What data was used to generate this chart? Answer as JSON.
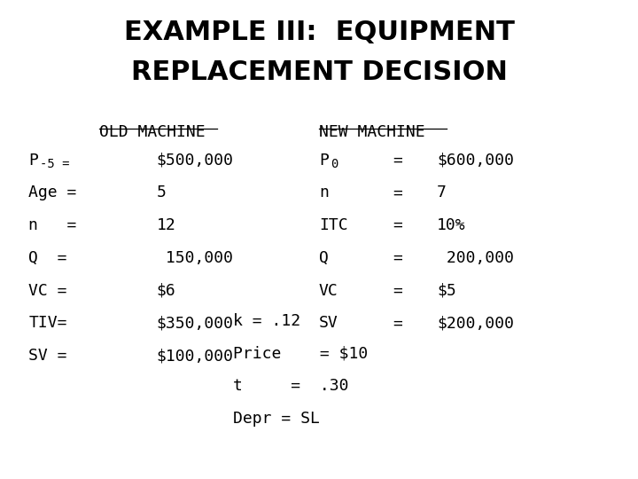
{
  "title_line1": "EXAMPLE III:  EQUIPMENT",
  "title_line2": "REPLACEMENT DECISION",
  "title_fontsize": 22,
  "title_fontweight": "bold",
  "background_color": "#ffffff",
  "old_machine_header": "OLD MACHINE",
  "old_machine_rows": [
    [
      "P-5 =",
      "$500,000"
    ],
    [
      "Age =",
      "5"
    ],
    [
      "n   =",
      "12"
    ],
    [
      "Q  =",
      " 150,000"
    ],
    [
      "VC =",
      "$6"
    ],
    [
      "TIV=",
      "$350,000"
    ],
    [
      "SV =",
      "$100,000"
    ]
  ],
  "new_machine_header": "NEW MACHINE",
  "new_machine_rows": [
    [
      "P0",
      "=",
      "$600,000"
    ],
    [
      "n",
      "=",
      "7"
    ],
    [
      "ITC",
      "=",
      "10%"
    ],
    [
      "Q",
      "=",
      " 200,000"
    ],
    [
      "VC",
      "=",
      "$5"
    ],
    [
      "SV",
      "=",
      "$200,000"
    ]
  ],
  "shared_params": [
    "k = .12",
    "Price    = $10",
    "t     =  .30",
    "Depr = SL"
  ],
  "text_color": "#000000",
  "body_fontsize": 13,
  "header_fontsize": 13
}
